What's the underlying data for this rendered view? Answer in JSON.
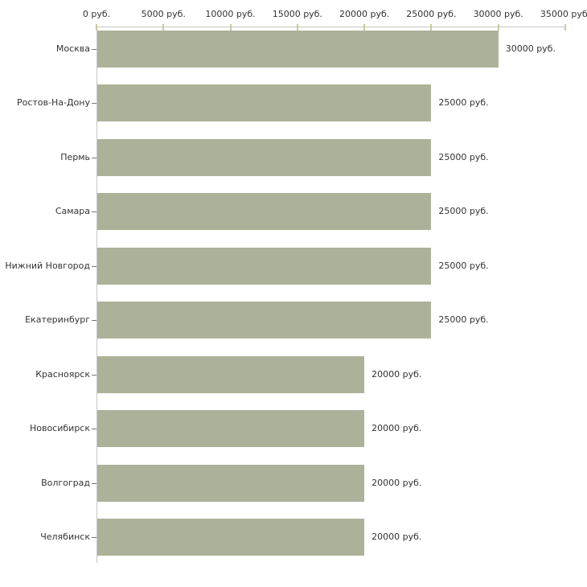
{
  "chart_data": {
    "type": "bar",
    "orientation": "horizontal",
    "title": "",
    "xlabel": "",
    "ylabel": "",
    "unit": "руб.",
    "xlim": [
      0,
      35000
    ],
    "grid": false,
    "legend": null,
    "x_ticks": [
      {
        "value": 0,
        "label": "0 руб."
      },
      {
        "value": 5000,
        "label": "5000 руб."
      },
      {
        "value": 10000,
        "label": "10000 руб."
      },
      {
        "value": 15000,
        "label": "15000 руб."
      },
      {
        "value": 20000,
        "label": "20000 руб."
      },
      {
        "value": 25000,
        "label": "25000 руб."
      },
      {
        "value": 30000,
        "label": "30000 руб."
      },
      {
        "value": 35000,
        "label": "35000 руб."
      }
    ],
    "categories": [
      "Москва",
      "Ростов-На-Дону",
      "Пермь",
      "Самара",
      "Нижний Новгород",
      "Екатеринбург",
      "Красноярск",
      "Новосибирск",
      "Волгоград",
      "Челябинск"
    ],
    "values": [
      30000,
      25000,
      25000,
      25000,
      25000,
      25000,
      20000,
      20000,
      20000,
      20000
    ],
    "value_labels": [
      "30000 руб.",
      "25000 руб.",
      "25000 руб.",
      "25000 руб.",
      "25000 руб.",
      "25000 руб.",
      "20000 руб.",
      "20000 руб.",
      "20000 руб.",
      "20000 руб."
    ],
    "colors": {
      "bar": "#acb299",
      "axis_line": "#c6c6c6",
      "x_tick": "#c9c99c",
      "y_tick": "#777770",
      "text": "#333333",
      "background": "#ffffff"
    }
  }
}
